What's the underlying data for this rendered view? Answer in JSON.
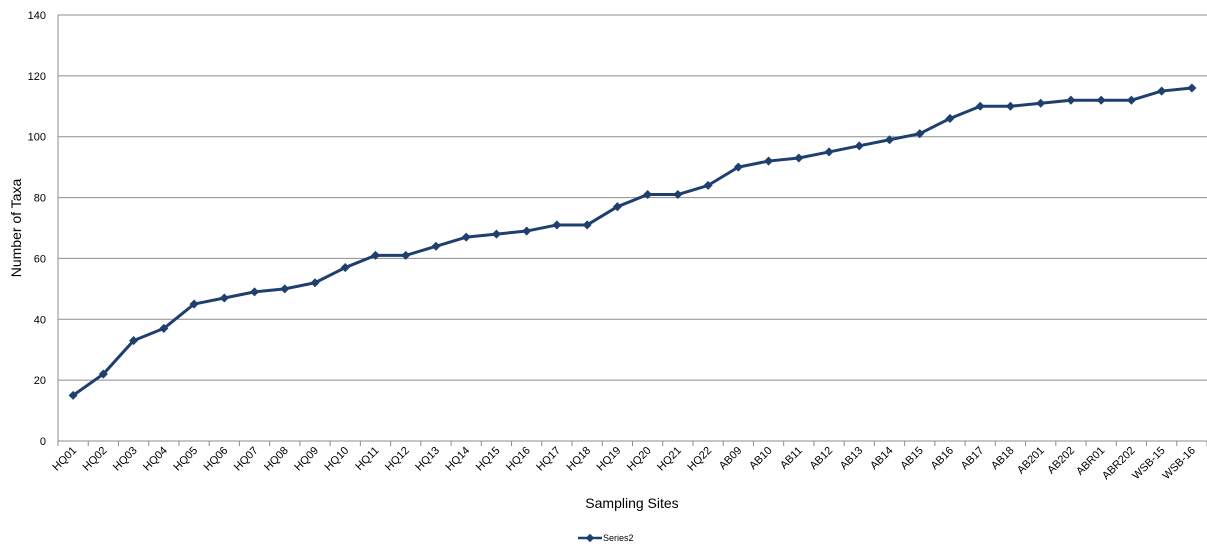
{
  "chart_data": {
    "type": "line",
    "title": "",
    "xlabel": "Sampling Sites",
    "ylabel": "Number of Taxa",
    "ylim": [
      0,
      140
    ],
    "yticks": [
      0,
      20,
      40,
      60,
      80,
      100,
      120,
      140
    ],
    "grid": "horizontal",
    "legend_position": "bottom-center",
    "categories": [
      "HQ01",
      "HQ02",
      "HQ03",
      "HQ04",
      "HQ05",
      "HQ06",
      "HQ07",
      "HQ08",
      "HQ09",
      "HQ10",
      "HQ11",
      "HQ12",
      "HQ13",
      "HQ14",
      "HQ15",
      "HQ16",
      "HQ17",
      "HQ18",
      "HQ19",
      "HQ20",
      "HQ21",
      "HQ22",
      "AB09",
      "AB10",
      "AB11",
      "AB12",
      "AB13",
      "AB14",
      "AB15",
      "AB16",
      "AB17",
      "AB18",
      "AB201",
      "AB202",
      "ABR01",
      "ABR202",
      "WSB-15",
      "WSB-16"
    ],
    "series": [
      {
        "name": "Series2",
        "color": "#1f3f6e",
        "values": [
          15,
          22,
          33,
          37,
          45,
          47,
          49,
          50,
          52,
          57,
          61,
          61,
          64,
          67,
          68,
          69,
          71,
          71,
          77,
          81,
          81,
          84,
          90,
          92,
          93,
          95,
          97,
          99,
          101,
          106,
          110,
          110,
          111,
          112,
          112,
          112,
          115,
          116
        ]
      }
    ]
  }
}
